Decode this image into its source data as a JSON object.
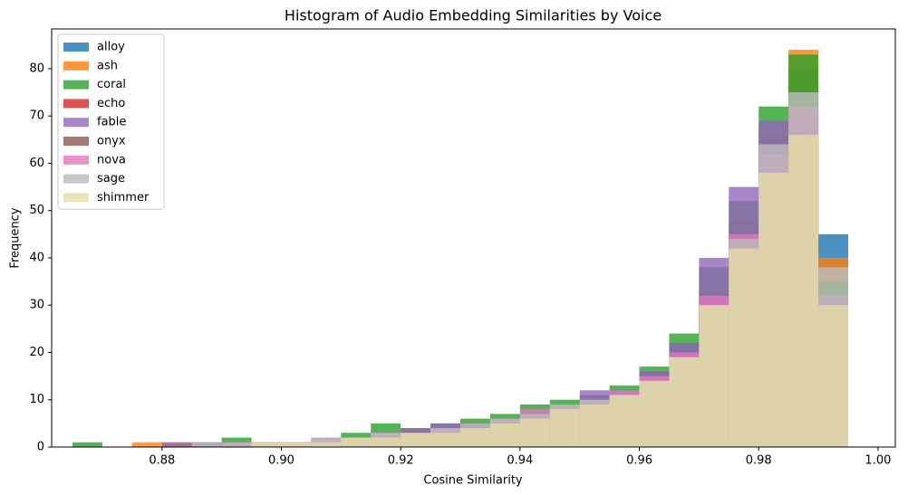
{
  "chart_data": {
    "type": "histogram",
    "title": "Histogram of Audio Embedding Similarities by Voice",
    "x_label": "Cosine Similarity",
    "y_label": "Frequency",
    "bins": [
      0.865,
      0.87,
      0.875,
      0.88,
      0.885,
      0.89,
      0.895,
      0.9,
      0.905,
      0.91,
      0.915,
      0.92,
      0.925,
      0.93,
      0.935,
      0.94,
      0.945,
      0.95,
      0.955,
      0.96,
      0.965,
      0.97,
      0.975,
      0.98,
      0.985,
      0.99,
      0.995
    ],
    "series": [
      {
        "name": "alloy",
        "color": "#1f77b4",
        "values": [
          0,
          0,
          0,
          0,
          0,
          0,
          0,
          1,
          1,
          2,
          2,
          2,
          3,
          4,
          4,
          5,
          6,
          8,
          10,
          16,
          22,
          32,
          45,
          65,
          80,
          45
        ]
      },
      {
        "name": "ash",
        "color": "#ff7f0e",
        "values": [
          0,
          0,
          1,
          1,
          0,
          0,
          0,
          1,
          1,
          1,
          2,
          2,
          3,
          3,
          4,
          5,
          6,
          8,
          11,
          15,
          20,
          33,
          48,
          66,
          84,
          40
        ]
      },
      {
        "name": "coral",
        "color": "#2ca02c",
        "values": [
          1,
          0,
          0,
          0,
          1,
          2,
          1,
          1,
          2,
          3,
          5,
          4,
          5,
          6,
          7,
          9,
          10,
          11,
          13,
          17,
          24,
          38,
          52,
          72,
          83,
          35
        ]
      },
      {
        "name": "echo",
        "color": "#d62728",
        "values": [
          0,
          0,
          0,
          0,
          0,
          0,
          0,
          1,
          1,
          2,
          2,
          3,
          3,
          4,
          5,
          6,
          7,
          8,
          10,
          14,
          18,
          30,
          42,
          60,
          70,
          30
        ]
      },
      {
        "name": "fable",
        "color": "#9467bd",
        "values": [
          0,
          0,
          0,
          1,
          1,
          1,
          1,
          1,
          2,
          2,
          3,
          4,
          5,
          5,
          6,
          7,
          8,
          12,
          12,
          16,
          22,
          40,
          55,
          69,
          65,
          28
        ]
      },
      {
        "name": "onyx",
        "color": "#8c564b",
        "values": [
          0,
          0,
          0,
          0,
          0,
          1,
          1,
          1,
          1,
          2,
          2,
          3,
          3,
          4,
          5,
          6,
          7,
          9,
          10,
          13,
          18,
          28,
          40,
          55,
          62,
          30
        ]
      },
      {
        "name": "nova",
        "color": "#e377c2",
        "values": [
          0,
          0,
          0,
          0,
          0,
          1,
          1,
          1,
          2,
          2,
          3,
          3,
          4,
          4,
          6,
          8,
          9,
          10,
          12,
          15,
          20,
          32,
          45,
          62,
          72,
          32
        ]
      },
      {
        "name": "sage",
        "color": "#bcbcbc",
        "values": [
          0,
          0,
          0,
          0,
          1,
          1,
          1,
          1,
          2,
          2,
          3,
          3,
          4,
          5,
          6,
          7,
          9,
          10,
          11,
          14,
          19,
          30,
          44,
          64,
          75,
          38
        ]
      },
      {
        "name": "shimmer",
        "color": "#e6dca8",
        "values": [
          0,
          0,
          0,
          0,
          0,
          0,
          1,
          1,
          1,
          2,
          2,
          3,
          3,
          4,
          5,
          6,
          8,
          9,
          11,
          14,
          19,
          30,
          42,
          58,
          66,
          30
        ]
      }
    ],
    "xlim": [
      0.8615,
      1.0029
    ],
    "ylim": [
      0,
      88.4
    ],
    "xticks": [
      0.88,
      {
        "value": 0.9,
        "label": "0.90"
      },
      0.92,
      0.94,
      0.96,
      0.98,
      {
        "value": 1.0,
        "label": "1.00"
      }
    ],
    "yticks": [
      0,
      10,
      20,
      30,
      40,
      50,
      60,
      70,
      80
    ],
    "legend": "upper left"
  }
}
